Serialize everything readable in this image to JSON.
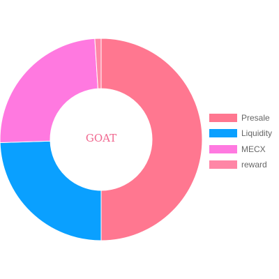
{
  "chart_data": {
    "type": "pie",
    "variant": "doughnut",
    "center_text": "GOAT",
    "legend_position": "right",
    "categories": [
      "Presale",
      "Liquidity",
      "MECX",
      "reward"
    ],
    "values": [
      50,
      24.5,
      24.5,
      1
    ],
    "colors": [
      "#ff7790",
      "#0aa0ff",
      "#ff79e0",
      "#ff86a6"
    ]
  }
}
